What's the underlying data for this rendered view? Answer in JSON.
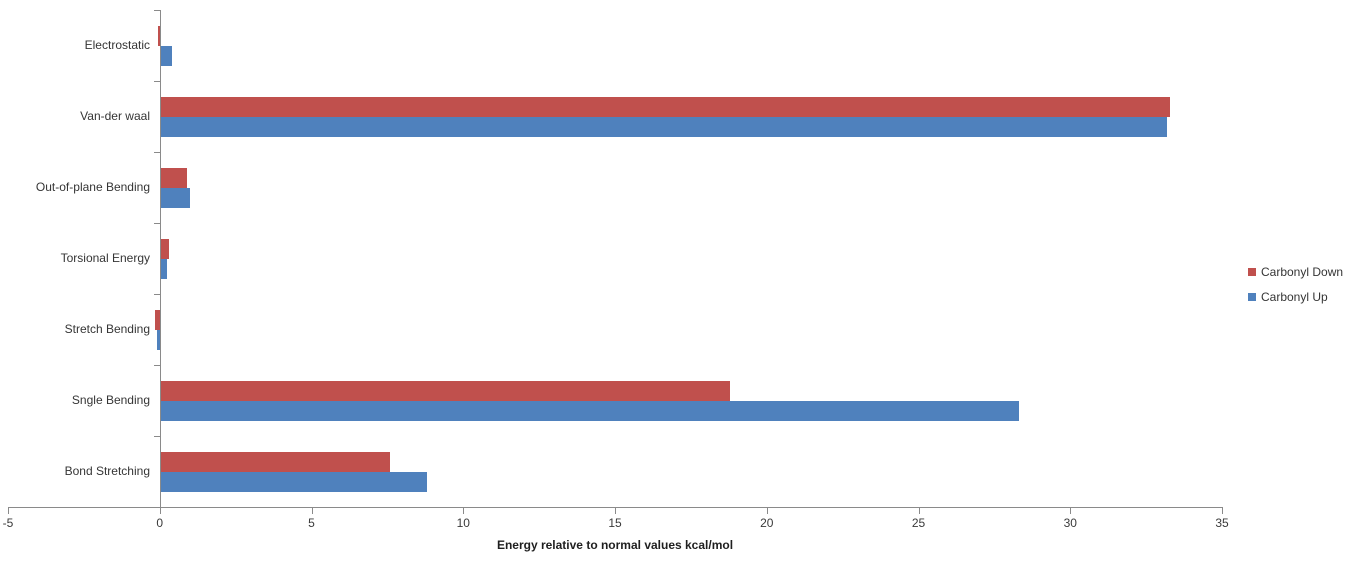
{
  "chart_data": {
    "type": "bar",
    "orientation": "horizontal",
    "xlabel": "Energy relative to normal values kcal/mol",
    "categories": [
      "Electrostatic",
      "Van-der waal",
      "Out-of-plane Bending",
      "Torsional Energy",
      "Stretch Bending",
      "Sngle Bending",
      "Bond Stretching"
    ],
    "series": [
      {
        "name": "Carbonyl Down",
        "color": "#C0504D",
        "values": [
          -0.07,
          33.3,
          0.9,
          0.3,
          -0.15,
          18.8,
          7.6
        ]
      },
      {
        "name": "Carbonyl Up",
        "color": "#4F81BD",
        "values": [
          0.4,
          33.2,
          1.0,
          0.25,
          -0.1,
          28.3,
          8.8
        ]
      }
    ],
    "xlim": [
      -5,
      35
    ],
    "x_ticks": [
      -5,
      0,
      5,
      10,
      15,
      20,
      25,
      30,
      35
    ],
    "grid": false,
    "legend_position": "right",
    "axis_color": "#8a8a8a",
    "text_color": "#3a3a3a"
  }
}
